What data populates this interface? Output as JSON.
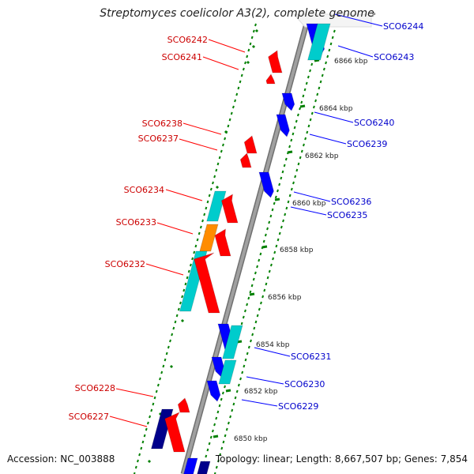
{
  "title": "Streptomyces coelicolor A3(2), complete genome",
  "title_marker": "P",
  "footer": {
    "accession": "Accession: NC_003888",
    "summary": "Topology: linear; Length: 8,667,507 bp; Genes: 7,854"
  },
  "colors": {
    "red": "#ff0000",
    "blue": "#0000ff",
    "cyan": "#00cccc",
    "navy": "#00008b",
    "orange": "#ff8c00",
    "backbone": "#a0a0a0",
    "tick": "#008000",
    "label_red": "#cc0000",
    "label_blue": "#0000cc"
  },
  "ruler_labels": [
    "6866 kbp",
    "6864 kbp",
    "6862 kbp",
    "6860 kbp",
    "6858 kbp",
    "6856 kbp",
    "6854 kbp",
    "6852 kbp",
    "6850 kbp"
  ],
  "left_labels": [
    "SCO6242",
    "SCO6241",
    "SCO6238",
    "SCO6237",
    "SCO6234",
    "SCO6233",
    "SCO6232",
    "SCO6228",
    "SCO6227"
  ],
  "right_labels": [
    "SCO6244",
    "SCO6243",
    "SCO6240",
    "SCO6239",
    "SCO6236",
    "SCO6235",
    "SCO6231",
    "SCO6230",
    "SCO6229"
  ]
}
